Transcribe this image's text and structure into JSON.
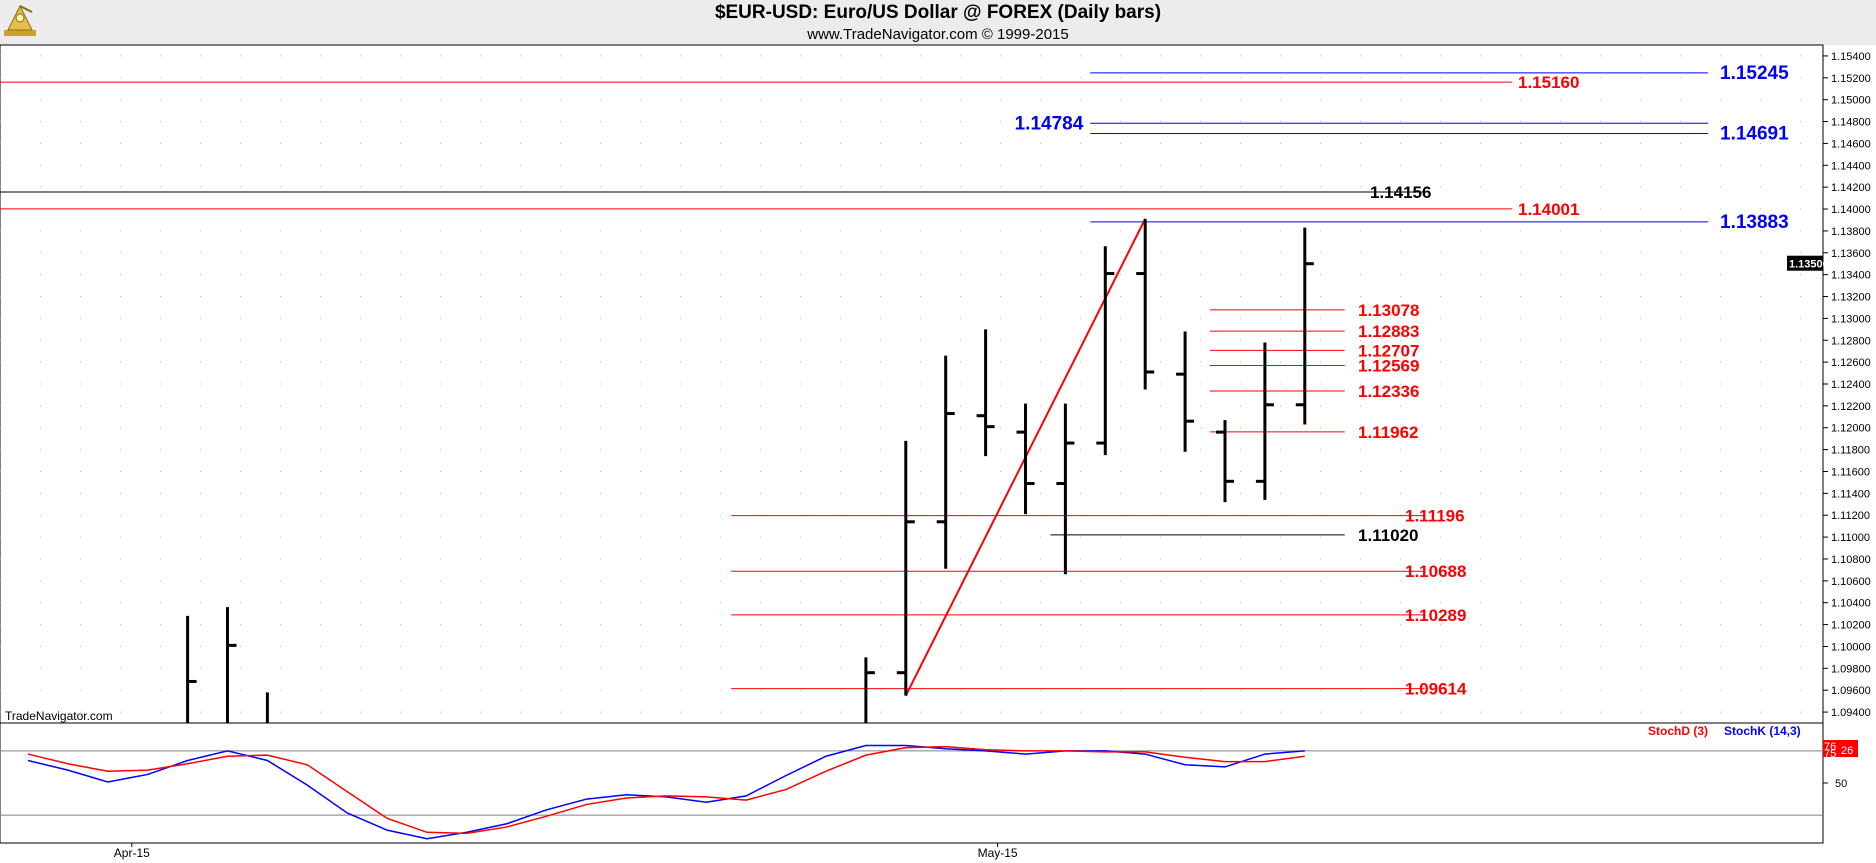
{
  "header": {
    "title": "$EUR-USD:  Euro/US Dollar @ FOREX  (Daily bars)",
    "subtitle": "www.TradeNavigator.com © 1999-2015"
  },
  "watermark": "TradeNavigator.com",
  "current_price_label": "1.13500",
  "colors": {
    "red": "#ff0000",
    "blue": "#0000ff",
    "black": "#000000",
    "grid": "#b8b8b8",
    "header_bg": "#ececec"
  },
  "chart_data": [
    {
      "type": "ohlc",
      "title": "$EUR-USD:  Euro/US Dollar @ FOREX  (Daily bars)",
      "ylim": [
        1.093,
        1.155
      ],
      "y_ticks": [
        "1.15400",
        "1.15200",
        "1.15000",
        "1.14800",
        "1.14600",
        "1.14400",
        "1.14200",
        "1.14000",
        "1.13800",
        "1.13600",
        "1.13400",
        "1.13200",
        "1.13000",
        "1.12800",
        "1.12600",
        "1.12400",
        "1.12200",
        "1.12000",
        "1.11800",
        "1.11600",
        "1.11400",
        "1.11200",
        "1.11000",
        "1.10800",
        "1.10600",
        "1.10400",
        "1.10200",
        "1.10000",
        "1.09800",
        "1.09600",
        "1.09400"
      ],
      "x_labels": [
        {
          "label": "Apr-15",
          "index": 2
        },
        {
          "label": "May-15",
          "index": 24
        }
      ],
      "bars": [
        {
          "i": 4,
          "o": null,
          "h": 1.1028,
          "l": 1.093,
          "c": 1.0968
        },
        {
          "i": 5,
          "o": null,
          "h": 1.1036,
          "l": 1.093,
          "c": 1.1001
        },
        {
          "i": 6,
          "o": null,
          "h": 1.0958,
          "l": 1.093,
          "c": null
        },
        {
          "i": 21,
          "o": null,
          "h": 1.099,
          "l": 1.093,
          "c": 1.0976
        },
        {
          "i": 22,
          "o": 1.0976,
          "h": 1.1188,
          "l": 1.0955,
          "c": 1.1114
        },
        {
          "i": 23,
          "o": 1.1114,
          "h": 1.1266,
          "l": 1.1071,
          "c": 1.1213
        },
        {
          "i": 24,
          "o": 1.1211,
          "h": 1.129,
          "l": 1.1174,
          "c": 1.1201
        },
        {
          "i": 25,
          "o": 1.1196,
          "h": 1.1222,
          "l": 1.1121,
          "c": 1.1149
        },
        {
          "i": 26,
          "o": 1.1149,
          "h": 1.1222,
          "l": 1.1066,
          "c": 1.1186
        },
        {
          "i": 27,
          "o": 1.1186,
          "h": 1.1366,
          "l": 1.1175,
          "c": 1.1341
        },
        {
          "i": 28,
          "o": 1.1341,
          "h": 1.1391,
          "l": 1.1235,
          "c": 1.1251
        },
        {
          "i": 29,
          "o": 1.1249,
          "h": 1.1288,
          "l": 1.1178,
          "c": 1.1206
        },
        {
          "i": 30,
          "o": 1.1196,
          "h": 1.1207,
          "l": 1.1132,
          "c": 1.1151
        },
        {
          "i": 31,
          "o": 1.1151,
          "h": 1.1278,
          "l": 1.1134,
          "c": 1.1221
        },
        {
          "i": 32,
          "o": 1.1221,
          "h": 1.1383,
          "l": 1.1203,
          "c": 1.135
        }
      ],
      "levels": [
        {
          "label": "1.15245",
          "value": 1.15245,
          "color": "#0000ff",
          "from": 27,
          "to": "axis",
          "label_pos": "right",
          "style": "blue"
        },
        {
          "label": "1.15160",
          "value": 1.1516,
          "color": "#ff0000",
          "from": "start",
          "to": 37.2,
          "label_pos": "end",
          "style": "red"
        },
        {
          "label": "1.14784",
          "value": 1.14784,
          "color": "#0000ff",
          "from": 27,
          "to": "axis",
          "label_pos": "left",
          "style": "blue"
        },
        {
          "label": "1.14691",
          "value": 1.14691,
          "color": "#0000ff",
          "from": 27,
          "to": "axis",
          "label_pos": "right",
          "style": "blue"
        },
        {
          "label": "1.14156",
          "value": 1.14156,
          "color": "#000000",
          "from": "start",
          "to": 35,
          "label_pos": "end",
          "style": "black"
        },
        {
          "label": "1.14001",
          "value": 1.14001,
          "color": "#ff0000",
          "from": "start",
          "to": 37.2,
          "label_pos": "end",
          "style": "red"
        },
        {
          "label": "1.13883",
          "value": 1.13883,
          "color": "#0000ff",
          "from": 27,
          "to": "axis",
          "label_pos": "right",
          "style": "blue"
        },
        {
          "label": "1.13078",
          "value": 1.13078,
          "color": "#ff0000",
          "from": 30,
          "to": 33,
          "label_pos": "end",
          "style": "red"
        },
        {
          "label": "1.12883",
          "value": 1.12883,
          "color": "#ff0000",
          "from": 30,
          "to": 33,
          "label_pos": "end",
          "style": "red"
        },
        {
          "label": "1.12707",
          "value": 1.12707,
          "color": "#ff0000",
          "from": 30,
          "to": 33,
          "label_pos": "end",
          "style": "red"
        },
        {
          "label": "1.12569",
          "value": 1.12569,
          "color": "#ff0000",
          "from": 30,
          "to": 33,
          "label_pos": "end",
          "style": "red"
        },
        {
          "label": "1.12336",
          "value": 1.12336,
          "color": "#ff0000",
          "from": 30,
          "to": 33,
          "label_pos": "end",
          "style": "red"
        },
        {
          "label": "1.11962",
          "value": 1.11962,
          "color": "#ff0000",
          "from": 30,
          "to": 33,
          "label_pos": "end",
          "style": "red"
        },
        {
          "label": "1.11196",
          "value": 1.11196,
          "color": "#ff0000",
          "from": 18,
          "to": 35,
          "label_pos": "end",
          "style": "red"
        },
        {
          "label": "1.11020",
          "value": 1.1102,
          "color": "#000000",
          "from": 26,
          "to": 33,
          "label_pos": "end",
          "style": "black"
        },
        {
          "label": "1.10688",
          "value": 1.10688,
          "color": "#ff0000",
          "from": 18,
          "to": 35,
          "label_pos": "end",
          "style": "red"
        },
        {
          "label": "1.10289",
          "value": 1.10289,
          "color": "#ff0000",
          "from": 18,
          "to": 35,
          "label_pos": "end",
          "style": "red"
        },
        {
          "label": "1.09614",
          "value": 1.09614,
          "color": "#ff0000",
          "from": 18,
          "to": 35,
          "label_pos": "end",
          "style": "red"
        }
      ],
      "trendline": {
        "color": "#ff0000",
        "from": {
          "i": 22,
          "v": 1.0955
        },
        "to": {
          "i": 28,
          "v": 1.1391
        }
      }
    },
    {
      "type": "line",
      "legend": [
        {
          "name": "StochD (3)",
          "color": "#ff0000"
        },
        {
          "name": "StochK (14,3)",
          "color": "#0000ff"
        }
      ],
      "ylim": [
        -6,
        106
      ],
      "y_ticks": [
        "50"
      ],
      "reference_lines": [
        80,
        20
      ],
      "value_labels": [
        "75",
        "76",
        "26"
      ],
      "series": [
        {
          "name": "StochK (14,3)",
          "color": "#0000ff",
          "x": [
            0,
            1,
            2,
            3,
            4,
            5,
            6,
            7,
            8,
            9,
            10,
            11,
            12,
            13,
            14,
            15,
            16,
            17,
            18,
            19,
            20,
            21,
            22,
            23,
            24,
            25,
            26,
            27,
            28,
            29,
            30,
            31,
            32
          ],
          "y": [
            71,
            62,
            51,
            58,
            71,
            80,
            71,
            48,
            22,
            6,
            -2,
            4,
            12,
            25,
            35,
            39,
            37,
            32,
            38,
            57,
            75,
            85,
            85,
            82,
            80,
            77,
            80,
            80,
            77,
            67,
            65,
            77,
            80
          ]
        },
        {
          "name": "StochD (3)",
          "color": "#ff0000",
          "x": [
            0,
            1,
            2,
            3,
            4,
            5,
            6,
            7,
            8,
            9,
            10,
            11,
            12,
            13,
            14,
            15,
            16,
            17,
            18,
            19,
            20,
            21,
            22,
            23,
            24,
            25,
            26,
            27,
            28,
            29,
            30,
            31,
            32
          ],
          "y": [
            77,
            68,
            61,
            62,
            68,
            75,
            76,
            67,
            42,
            17,
            4,
            3,
            9,
            19,
            30,
            36,
            38,
            37,
            34,
            44,
            61,
            76,
            83,
            84,
            81,
            80,
            80,
            79,
            79,
            74,
            70,
            70,
            75
          ]
        }
      ]
    }
  ]
}
